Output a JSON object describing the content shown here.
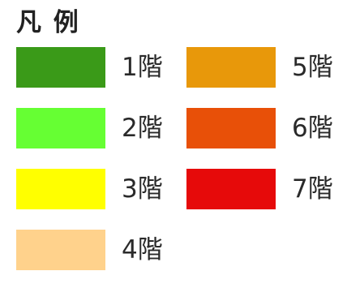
{
  "legend": {
    "title": "凡 例",
    "items": [
      {
        "label": "1階",
        "color": "#3a9a18"
      },
      {
        "label": "2階",
        "color": "#66ff33"
      },
      {
        "label": "3階",
        "color": "#ffff00"
      },
      {
        "label": "4階",
        "color": "#ffd28c"
      },
      {
        "label": "5階",
        "color": "#e8980a"
      },
      {
        "label": "6階",
        "color": "#e85008"
      },
      {
        "label": "7階",
        "color": "#e60a0a"
      }
    ]
  }
}
